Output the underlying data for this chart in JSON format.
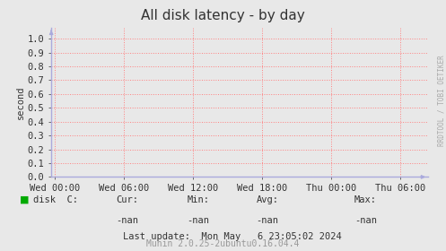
{
  "title": "All disk latency - by day",
  "ylabel": "second",
  "background_color": "#e8e8e8",
  "plot_bg_color": "#e8e8e8",
  "grid_color": "#ff8080",
  "ylim": [
    0.0,
    1.08
  ],
  "yticks": [
    0.0,
    0.1,
    0.2,
    0.3,
    0.4,
    0.5,
    0.6,
    0.7,
    0.8,
    0.9,
    1.0
  ],
  "xtick_labels": [
    "Wed 00:00",
    "Wed 06:00",
    "Wed 12:00",
    "Wed 18:00",
    "Thu 00:00",
    "Thu 06:00"
  ],
  "xtick_positions": [
    0,
    1,
    2,
    3,
    4,
    5
  ],
  "xlim": [
    -0.05,
    5.4
  ],
  "legend_label": "disk  C:",
  "legend_color": "#00aa00",
  "cur_label": "Cur:",
  "cur_val": "-nan",
  "min_label": "Min:",
  "min_val": "-nan",
  "avg_label": "Avg:",
  "avg_val": "-nan",
  "max_label": "Max:",
  "max_val": "-nan",
  "last_update": "Last update:  Mon May   6 23:05:02 2024",
  "footer": "Munin 2.0.25-2ubuntu0.16.04.4",
  "side_text": "RRDTOOL / TOBI OETIKER",
  "title_fontsize": 11,
  "axis_fontsize": 7.5,
  "footer_fontsize": 7,
  "side_fontsize": 5.5,
  "arrow_color": "#aaaadd"
}
